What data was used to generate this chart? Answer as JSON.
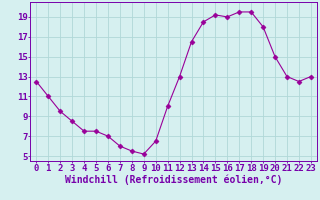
{
  "x": [
    0,
    1,
    2,
    3,
    4,
    5,
    6,
    7,
    8,
    9,
    10,
    11,
    12,
    13,
    14,
    15,
    16,
    17,
    18,
    19,
    20,
    21,
    22,
    23
  ],
  "y": [
    12.5,
    11.0,
    9.5,
    8.5,
    7.5,
    7.5,
    7.0,
    6.0,
    5.5,
    5.2,
    6.5,
    10.0,
    13.0,
    16.5,
    18.5,
    19.2,
    19.0,
    19.5,
    19.5,
    18.0,
    15.0,
    13.0,
    12.5,
    13.0
  ],
  "line_color": "#990099",
  "marker": "D",
  "marker_size": 2.5,
  "bg_color": "#d6f0f0",
  "grid_color": "#b0d8d8",
  "xlabel": "Windchill (Refroidissement éolien,°C)",
  "xlabel_color": "#7700aa",
  "tick_color": "#7700aa",
  "ylabel_ticks": [
    5,
    7,
    9,
    11,
    13,
    15,
    17,
    19
  ],
  "xlim": [
    -0.5,
    23.5
  ],
  "ylim": [
    4.5,
    20.5
  ],
  "xticks": [
    0,
    1,
    2,
    3,
    4,
    5,
    6,
    7,
    8,
    9,
    10,
    11,
    12,
    13,
    14,
    15,
    16,
    17,
    18,
    19,
    20,
    21,
    22,
    23
  ],
  "font_size": 6.5,
  "xlabel_font_size": 7.0
}
